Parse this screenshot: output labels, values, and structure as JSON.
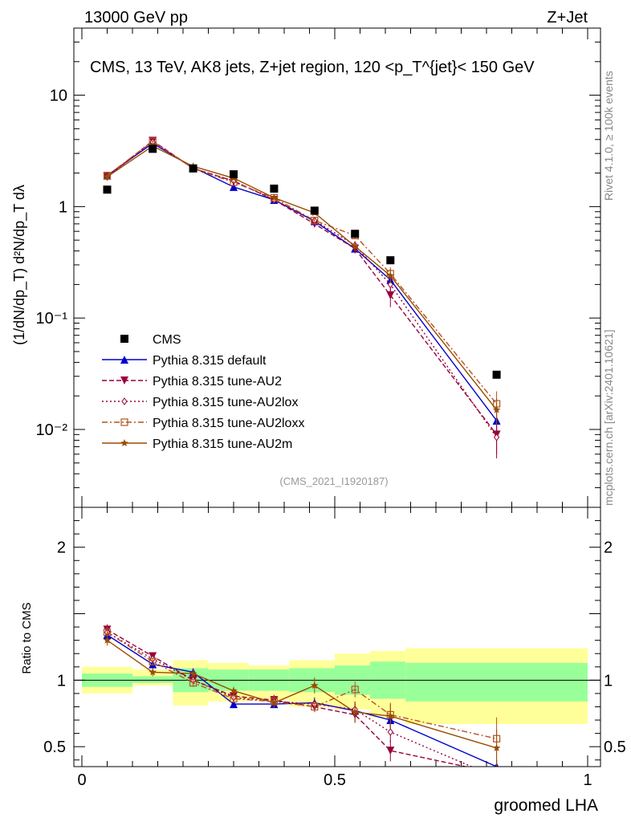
{
  "header": {
    "left": "13000 GeV pp",
    "right": "Z+Jet",
    "side_top": "Rivet 4.1.0, ≥ 100k events",
    "side_bottom": "mcplots.cern.ch [arXiv:2401.10621]"
  },
  "colors": {
    "cms": "#000000",
    "default": "#0000cc",
    "au2": "#99003d",
    "au2lox": "#99003d",
    "au2loxx": "#b3531f",
    "au2m": "#994c00",
    "band_inner": "#99ff99",
    "band_outer": "#ffff99"
  },
  "chart_data": [
    {
      "type": "line",
      "log_y": true,
      "title": "CMS, 13 TeV, AK8 jets, Z+jet region, 120 <p_T^{jet}< 150 GeV",
      "ylabel": "(1/dN/dp_T) d²N/dp_T dλ",
      "watermark": "(CMS_2021_I1920187)",
      "xlim": [
        0,
        1
      ],
      "ylim": [
        0.002,
        40
      ],
      "y_ticks": [
        {
          "value": 10,
          "label": "10"
        },
        {
          "value": 1,
          "label": "1"
        },
        {
          "value": 0.1,
          "label": "10⁻¹"
        },
        {
          "value": 0.01,
          "label": "10⁻²"
        }
      ],
      "bin_edges": [
        0,
        0.1,
        0.18,
        0.25,
        0.33,
        0.41,
        0.5,
        0.57,
        0.64,
        1.0
      ],
      "x": [
        0.05,
        0.14,
        0.22,
        0.3,
        0.38,
        0.46,
        0.54,
        0.61,
        0.82
      ],
      "legend": [
        "CMS",
        "Pythia 8.315 default",
        "Pythia 8.315 tune-AU2",
        "Pythia 8.315 tune-AU2lox",
        "Pythia 8.315 tune-AU2loxx",
        "Pythia 8.315 tune-AU2m"
      ],
      "legend_position": "bottom-left",
      "data": {
        "name": "CMS",
        "values": [
          1.42,
          3.3,
          2.2,
          1.95,
          1.45,
          0.92,
          0.57,
          0.33,
          0.031
        ]
      },
      "series": [
        {
          "name": "Pythia 8.315 default",
          "values": [
            1.9,
            3.7,
            2.25,
            1.5,
            1.15,
            0.74,
            0.42,
            0.22,
            0.012
          ],
          "errors": [
            0.05,
            0.08,
            0.05,
            0.04,
            0.04,
            0.03,
            0.03,
            0.03,
            0.004
          ]
        },
        {
          "name": "Pythia 8.315 tune-AU2",
          "values": [
            1.85,
            3.9,
            2.2,
            1.7,
            1.15,
            0.7,
            0.42,
            0.16,
            0.009
          ],
          "errors": [
            0.05,
            0.08,
            0.05,
            0.04,
            0.04,
            0.04,
            0.04,
            0.035,
            0.003
          ]
        },
        {
          "name": "Pythia 8.315 tune-AU2lox",
          "values": [
            1.85,
            3.8,
            2.2,
            1.7,
            1.15,
            0.75,
            0.45,
            0.2,
            0.0085
          ],
          "errors": [
            0.05,
            0.08,
            0.05,
            0.04,
            0.04,
            0.04,
            0.04,
            0.035,
            0.003
          ]
        },
        {
          "name": "Pythia 8.315 tune-AU2loxx",
          "values": [
            1.9,
            3.85,
            2.2,
            1.65,
            1.2,
            0.75,
            0.55,
            0.25,
            0.017
          ],
          "errors": [
            0.05,
            0.08,
            0.05,
            0.04,
            0.04,
            0.04,
            0.04,
            0.035,
            0.005
          ]
        },
        {
          "name": "Pythia 8.315 tune-AU2m",
          "values": [
            1.85,
            3.5,
            2.3,
            1.8,
            1.2,
            0.88,
            0.44,
            0.24,
            0.015
          ],
          "errors": [
            0.05,
            0.08,
            0.05,
            0.04,
            0.04,
            0.04,
            0.04,
            0.035,
            0.004
          ]
        }
      ]
    },
    {
      "type": "line",
      "log_y": false,
      "ylabel": "Ratio to CMS",
      "xlabel": "groomed LHA",
      "xlim": [
        0,
        1
      ],
      "ylim": [
        0.35,
        2.3
      ],
      "x_ticks": [
        {
          "value": 0,
          "label": "0"
        },
        {
          "value": 0.5,
          "label": "0.5"
        },
        {
          "value": 1,
          "label": "1"
        }
      ],
      "y_ticks": [
        {
          "value": 2,
          "label": "2"
        },
        {
          "value": 1,
          "label": "1"
        },
        {
          "value": 0.5,
          "label": "0.5"
        }
      ],
      "bands": [
        {
          "x0": 0,
          "x1": 0.1,
          "inner": [
            0.95,
            1.05
          ],
          "outer": [
            0.9,
            1.1
          ]
        },
        {
          "x0": 0.1,
          "x1": 0.18,
          "inner": [
            0.98,
            1.03
          ],
          "outer": [
            0.96,
            1.08
          ]
        },
        {
          "x0": 0.18,
          "x1": 0.25,
          "inner": [
            0.91,
            1.09
          ],
          "outer": [
            0.81,
            1.15
          ]
        },
        {
          "x0": 0.25,
          "x1": 0.33,
          "inner": [
            0.92,
            1.08
          ],
          "outer": [
            0.84,
            1.13
          ]
        },
        {
          "x0": 0.33,
          "x1": 0.41,
          "inner": [
            0.92,
            1.08
          ],
          "outer": [
            0.85,
            1.11
          ]
        },
        {
          "x0": 0.41,
          "x1": 0.5,
          "inner": [
            0.91,
            1.09
          ],
          "outer": [
            0.8,
            1.15
          ]
        },
        {
          "x0": 0.5,
          "x1": 0.57,
          "inner": [
            0.89,
            1.11
          ],
          "outer": [
            0.78,
            1.2
          ]
        },
        {
          "x0": 0.57,
          "x1": 0.64,
          "inner": [
            0.86,
            1.14
          ],
          "outer": [
            0.72,
            1.22
          ]
        },
        {
          "x0": 0.64,
          "x1": 1.0,
          "inner": [
            0.84,
            1.13
          ],
          "outer": [
            0.67,
            1.24
          ]
        }
      ],
      "series": [
        {
          "name": "Pythia 8.315 default",
          "values": [
            1.34,
            1.12,
            1.06,
            0.82,
            0.82,
            0.83,
            0.77,
            0.7,
            0.35
          ],
          "errors": [
            0.04,
            0.03,
            0.03,
            0.03,
            0.03,
            0.04,
            0.05,
            0.06,
            0.05
          ]
        },
        {
          "name": "Pythia 8.315 tune-AU2",
          "values": [
            1.38,
            1.18,
            1.0,
            0.88,
            0.85,
            0.8,
            0.74,
            0.47,
            0.3
          ],
          "errors": [
            0.04,
            0.03,
            0.03,
            0.03,
            0.04,
            0.04,
            0.06,
            0.08,
            0.1
          ]
        },
        {
          "name": "Pythia 8.315 tune-AU2lox",
          "values": [
            1.36,
            1.16,
            1.0,
            0.87,
            0.84,
            0.82,
            0.78,
            0.61,
            0.27
          ],
          "errors": [
            0.04,
            0.03,
            0.03,
            0.03,
            0.04,
            0.04,
            0.06,
            0.08,
            0.1
          ]
        },
        {
          "name": "Pythia 8.315 tune-AU2loxx",
          "values": [
            1.36,
            1.14,
            0.98,
            0.86,
            0.84,
            0.8,
            0.93,
            0.74,
            0.56
          ],
          "errors": [
            0.04,
            0.03,
            0.03,
            0.03,
            0.04,
            0.04,
            0.06,
            0.08,
            0.16
          ]
        },
        {
          "name": "Pythia 8.315 tune-AU2m",
          "values": [
            1.3,
            1.06,
            1.05,
            0.92,
            0.83,
            0.96,
            0.76,
            0.73,
            0.49
          ],
          "errors": [
            0.04,
            0.03,
            0.03,
            0.03,
            0.04,
            0.06,
            0.08,
            0.1,
            0.14
          ]
        }
      ]
    }
  ]
}
